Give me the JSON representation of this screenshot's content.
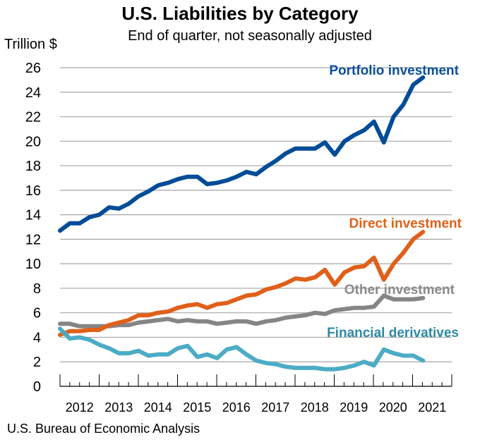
{
  "chart_data": {
    "type": "line",
    "title": "U.S. Liabilities by Category",
    "subtitle": "End of quarter, not seasonally adjusted",
    "ylabel": "Trillion $",
    "xlabel": "",
    "source": "U.S. Bureau of Economic Analysis",
    "ylim": [
      0,
      26
    ],
    "yticks": [
      0,
      2,
      4,
      6,
      8,
      10,
      12,
      14,
      16,
      18,
      20,
      22,
      24,
      26
    ],
    "year_labels": [
      "2012",
      "2013",
      "2014",
      "2015",
      "2016",
      "2017",
      "2018",
      "2019",
      "2020",
      "2021"
    ],
    "grid": true,
    "x": [
      "2011Q4",
      "2012Q1",
      "2012Q2",
      "2012Q3",
      "2012Q4",
      "2013Q1",
      "2013Q2",
      "2013Q3",
      "2013Q4",
      "2014Q1",
      "2014Q2",
      "2014Q3",
      "2014Q4",
      "2015Q1",
      "2015Q2",
      "2015Q3",
      "2015Q4",
      "2016Q1",
      "2016Q2",
      "2016Q3",
      "2016Q4",
      "2017Q1",
      "2017Q2",
      "2017Q3",
      "2017Q4",
      "2018Q1",
      "2018Q2",
      "2018Q3",
      "2018Q4",
      "2019Q1",
      "2019Q2",
      "2019Q3",
      "2019Q4",
      "2020Q1",
      "2020Q2",
      "2020Q3",
      "2020Q4",
      "2021Q1"
    ],
    "series": [
      {
        "name": "Portfolio investment",
        "color": "#004c97",
        "label_color": "#0b4f9b",
        "values": [
          12.7,
          13.3,
          13.3,
          13.8,
          14.0,
          14.6,
          14.5,
          14.9,
          15.5,
          15.9,
          16.4,
          16.6,
          16.9,
          17.1,
          17.1,
          16.5,
          16.6,
          16.8,
          17.1,
          17.5,
          17.3,
          17.9,
          18.4,
          19.0,
          19.4,
          19.4,
          19.4,
          19.9,
          18.9,
          20.0,
          20.5,
          20.9,
          21.6,
          19.9,
          22.0,
          23.0,
          24.6,
          25.2
        ]
      },
      {
        "name": "Direct investment",
        "color": "#e0601a",
        "label_color": "#e0601a",
        "values": [
          4.2,
          4.5,
          4.5,
          4.6,
          4.6,
          5.0,
          5.2,
          5.4,
          5.8,
          5.8,
          6.0,
          6.1,
          6.4,
          6.6,
          6.7,
          6.4,
          6.7,
          6.8,
          7.1,
          7.4,
          7.5,
          7.9,
          8.1,
          8.4,
          8.8,
          8.7,
          8.9,
          9.5,
          8.3,
          9.3,
          9.7,
          9.8,
          10.5,
          8.7,
          10.0,
          10.9,
          12.0,
          12.6
        ]
      },
      {
        "name": "Other investment",
        "color": "#858585",
        "label_color": "#8a8a8a",
        "values": [
          5.1,
          5.1,
          4.9,
          4.9,
          4.9,
          4.9,
          5.0,
          5.0,
          5.2,
          5.3,
          5.4,
          5.5,
          5.3,
          5.4,
          5.3,
          5.3,
          5.1,
          5.2,
          5.3,
          5.3,
          5.1,
          5.3,
          5.4,
          5.6,
          5.7,
          5.8,
          6.0,
          5.9,
          6.2,
          6.3,
          6.4,
          6.4,
          6.5,
          7.4,
          7.1,
          7.1,
          7.1,
          7.2
        ]
      },
      {
        "name": "Financial derivatives",
        "color": "#4bacc6",
        "label_color": "#2e8aa6",
        "values": [
          4.7,
          3.9,
          4.0,
          3.8,
          3.4,
          3.1,
          2.7,
          2.7,
          2.9,
          2.5,
          2.6,
          2.6,
          3.1,
          3.3,
          2.4,
          2.6,
          2.3,
          3.0,
          3.2,
          2.6,
          2.1,
          1.9,
          1.8,
          1.6,
          1.5,
          1.5,
          1.5,
          1.4,
          1.4,
          1.5,
          1.7,
          2.0,
          1.7,
          3.0,
          2.7,
          2.5,
          2.5,
          2.1
        ]
      }
    ]
  }
}
